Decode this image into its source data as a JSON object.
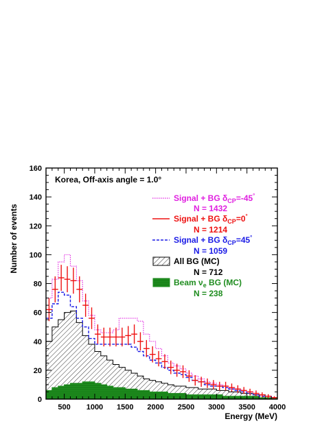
{
  "chart_data": {
    "type": "histogram",
    "annotation": "Korea, Off-axis angle = 1.0°",
    "xlabel": "Energy (MeV)",
    "ylabel": "Number of events",
    "xlim": [
      200,
      4000
    ],
    "ylim": [
      0,
      160
    ],
    "x_ticks": [
      500,
      1000,
      1500,
      2000,
      2500,
      3000,
      3500,
      4000
    ],
    "y_ticks": [
      0,
      20,
      40,
      60,
      80,
      100,
      120,
      140,
      160
    ],
    "bin_edges": [
      200,
      300,
      400,
      500,
      600,
      700,
      800,
      900,
      1000,
      1100,
      1200,
      1300,
      1400,
      1500,
      1600,
      1700,
      1800,
      1900,
      2000,
      2100,
      2200,
      2300,
      2400,
      2500,
      2600,
      2700,
      2800,
      2900,
      3000,
      3100,
      3200,
      3300,
      3400,
      3500,
      3600,
      3700,
      3800,
      3900,
      4000
    ],
    "series": [
      {
        "id": "sig_m45",
        "name": "Signal + BG δCP=-45°",
        "count_label": "N =  1432",
        "color": "#e020e0",
        "style": "dotted",
        "values": [
          70,
          83,
          95,
          100,
          92,
          82,
          68,
          58,
          48,
          46,
          46,
          48,
          56,
          56,
          56,
          54,
          45,
          40,
          35,
          30,
          25,
          23,
          21,
          18,
          16,
          14,
          12,
          11,
          10,
          9,
          8,
          7,
          6,
          5,
          4,
          3,
          2,
          1
        ]
      },
      {
        "id": "sig_0",
        "name": "Signal + BG δCP=0°",
        "count_label": "N =  1214",
        "color": "#ee1111",
        "style": "data",
        "values": [
          62,
          76,
          84,
          83,
          82,
          76,
          65,
          56,
          45,
          43,
          43,
          43,
          43,
          44,
          45,
          40,
          35,
          31,
          28,
          26,
          22,
          20,
          19,
          16,
          13,
          12,
          11,
          10,
          9,
          9,
          8,
          7,
          6,
          5,
          4,
          3,
          2,
          1
        ],
        "errors": [
          8,
          9,
          9,
          9,
          9,
          9,
          8,
          7.5,
          6.7,
          6.5,
          6.5,
          6.5,
          6.5,
          6.6,
          6.7,
          6.3,
          5.9,
          5.6,
          5.3,
          5.1,
          4.7,
          4.5,
          4.4,
          4,
          3.6,
          3.5,
          3.3,
          3.2,
          3,
          3,
          2.8,
          2.6,
          2.4,
          2.2,
          2,
          1.7,
          1.4,
          1
        ]
      },
      {
        "id": "sig_p45",
        "name": "Signal + BG δCP=45°",
        "count_label": "N = 1059",
        "color": "#1a1ae6",
        "style": "dashed",
        "values": [
          56,
          66,
          74,
          72,
          64,
          56,
          50,
          42,
          38,
          38,
          38,
          38,
          38,
          38,
          36,
          33,
          30,
          27,
          25,
          22,
          20,
          18,
          17,
          15,
          13,
          12,
          10,
          9,
          9,
          8,
          7,
          6,
          5,
          4,
          3,
          2,
          2,
          1
        ]
      },
      {
        "id": "all_bg",
        "name": "All BG (MC)",
        "count_label": "N =   712",
        "color": "#000000",
        "style": "hatched",
        "values": [
          40,
          50,
          55,
          60,
          61,
          53,
          44,
          38,
          33,
          30,
          27,
          24,
          22,
          20,
          18,
          16,
          14,
          13,
          12,
          11,
          10,
          9,
          9,
          8,
          8,
          7,
          7,
          7,
          6,
          6,
          5,
          5,
          4,
          4,
          3,
          3,
          2,
          1
        ]
      },
      {
        "id": "beam_ve",
        "name": "Beam νe BG (MC)",
        "count_label": "N =  238",
        "color": "#1e8c1e",
        "style": "filled",
        "values": [
          6,
          8,
          9,
          10,
          11,
          11,
          12,
          12,
          11,
          10,
          9,
          8,
          8,
          7,
          7,
          6,
          6,
          5,
          5,
          5,
          4,
          4,
          4,
          3,
          3,
          3,
          3,
          3,
          3,
          2,
          2,
          2,
          2,
          2,
          2,
          1,
          1,
          1
        ]
      }
    ],
    "legend_placement": "top-right",
    "grid": false
  }
}
